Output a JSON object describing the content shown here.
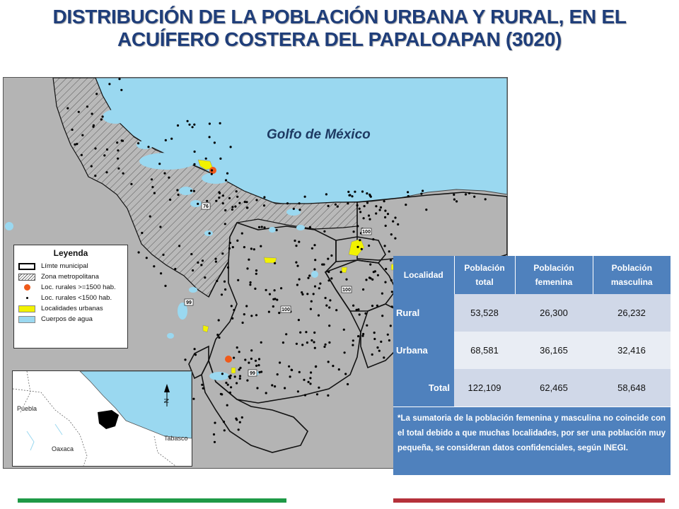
{
  "title_line1": "DISTRIBUCIÓN DE LA POBLACIÓN URBANA Y RURAL, EN EL",
  "title_line2": "ACUÍFERO COSTERA DEL PAPALOAPAN (3020)",
  "map": {
    "sea_label": "Golfo de México",
    "route_labels": [
      "76",
      "100",
      "100",
      "100",
      "99",
      "99"
    ],
    "colors": {
      "sea": "#9ad8f0",
      "land": "#b9b9b9",
      "urban": "#f2f200",
      "large_rural": "#f05a1a",
      "rural": "#000000"
    }
  },
  "legend": {
    "title": "Leyenda",
    "items": [
      {
        "label": "Límte municipal",
        "icon": "municipal-boundary"
      },
      {
        "label": "Zona metropolitana",
        "icon": "hatched-area"
      },
      {
        "label": "Loc. rurales >=1500 hab.",
        "icon": "orange-dot"
      },
      {
        "label": "Loc. rurales <1500 hab.",
        "icon": "black-dot"
      },
      {
        "label": "Localidades urbanas",
        "icon": "yellow-area"
      },
      {
        "label": "Cuerpos de agua",
        "icon": "blue-area"
      }
    ]
  },
  "inset": {
    "labels": {
      "puebla": "Puebla",
      "oaxaca": "Oaxaca",
      "tabasco": "Tabasco"
    },
    "north_arrow": "N"
  },
  "table": {
    "headers": [
      "Localidad",
      "Población total",
      "Población femenina",
      "Población masculina"
    ],
    "rows": [
      {
        "name": "Rural",
        "total": "53,528",
        "femenina": "26,300",
        "masculina": "26,232"
      },
      {
        "name": "Urbana",
        "total": "68,581",
        "femenina": "36,165",
        "masculina": "32,416"
      },
      {
        "name": "Total",
        "total": "122,109",
        "femenina": "62,465",
        "masculina": "58,648"
      }
    ],
    "note": "*La sumatoria de la población femenina y masculina no coincide con el total debido a que muchas localidades, por ser una población muy pequeña, se consideran datos confidenciales, según INEGI."
  }
}
